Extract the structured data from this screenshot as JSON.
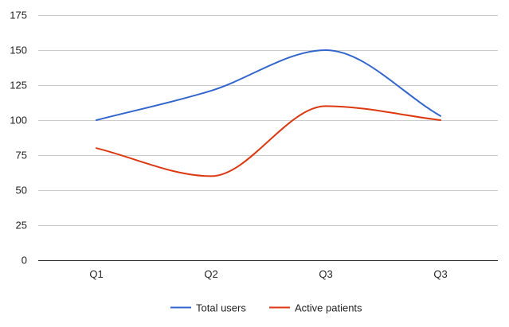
{
  "chart_data": {
    "type": "line",
    "smooth": true,
    "categories": [
      "Q1",
      "Q2",
      "Q3",
      "Q3"
    ],
    "y_ticks": [
      "175",
      "150",
      "125",
      "100",
      "75",
      "50",
      "25",
      "0"
    ],
    "ylim": [
      0,
      175
    ],
    "grid": true,
    "legend_position": "bottom",
    "series": [
      {
        "name": "Total users",
        "color": "#3366cc",
        "values": [
          100,
          121,
          150,
          103
        ]
      },
      {
        "name": "Active patients",
        "color": "#dc3912",
        "values": [
          80,
          60,
          110,
          100
        ]
      }
    ]
  }
}
